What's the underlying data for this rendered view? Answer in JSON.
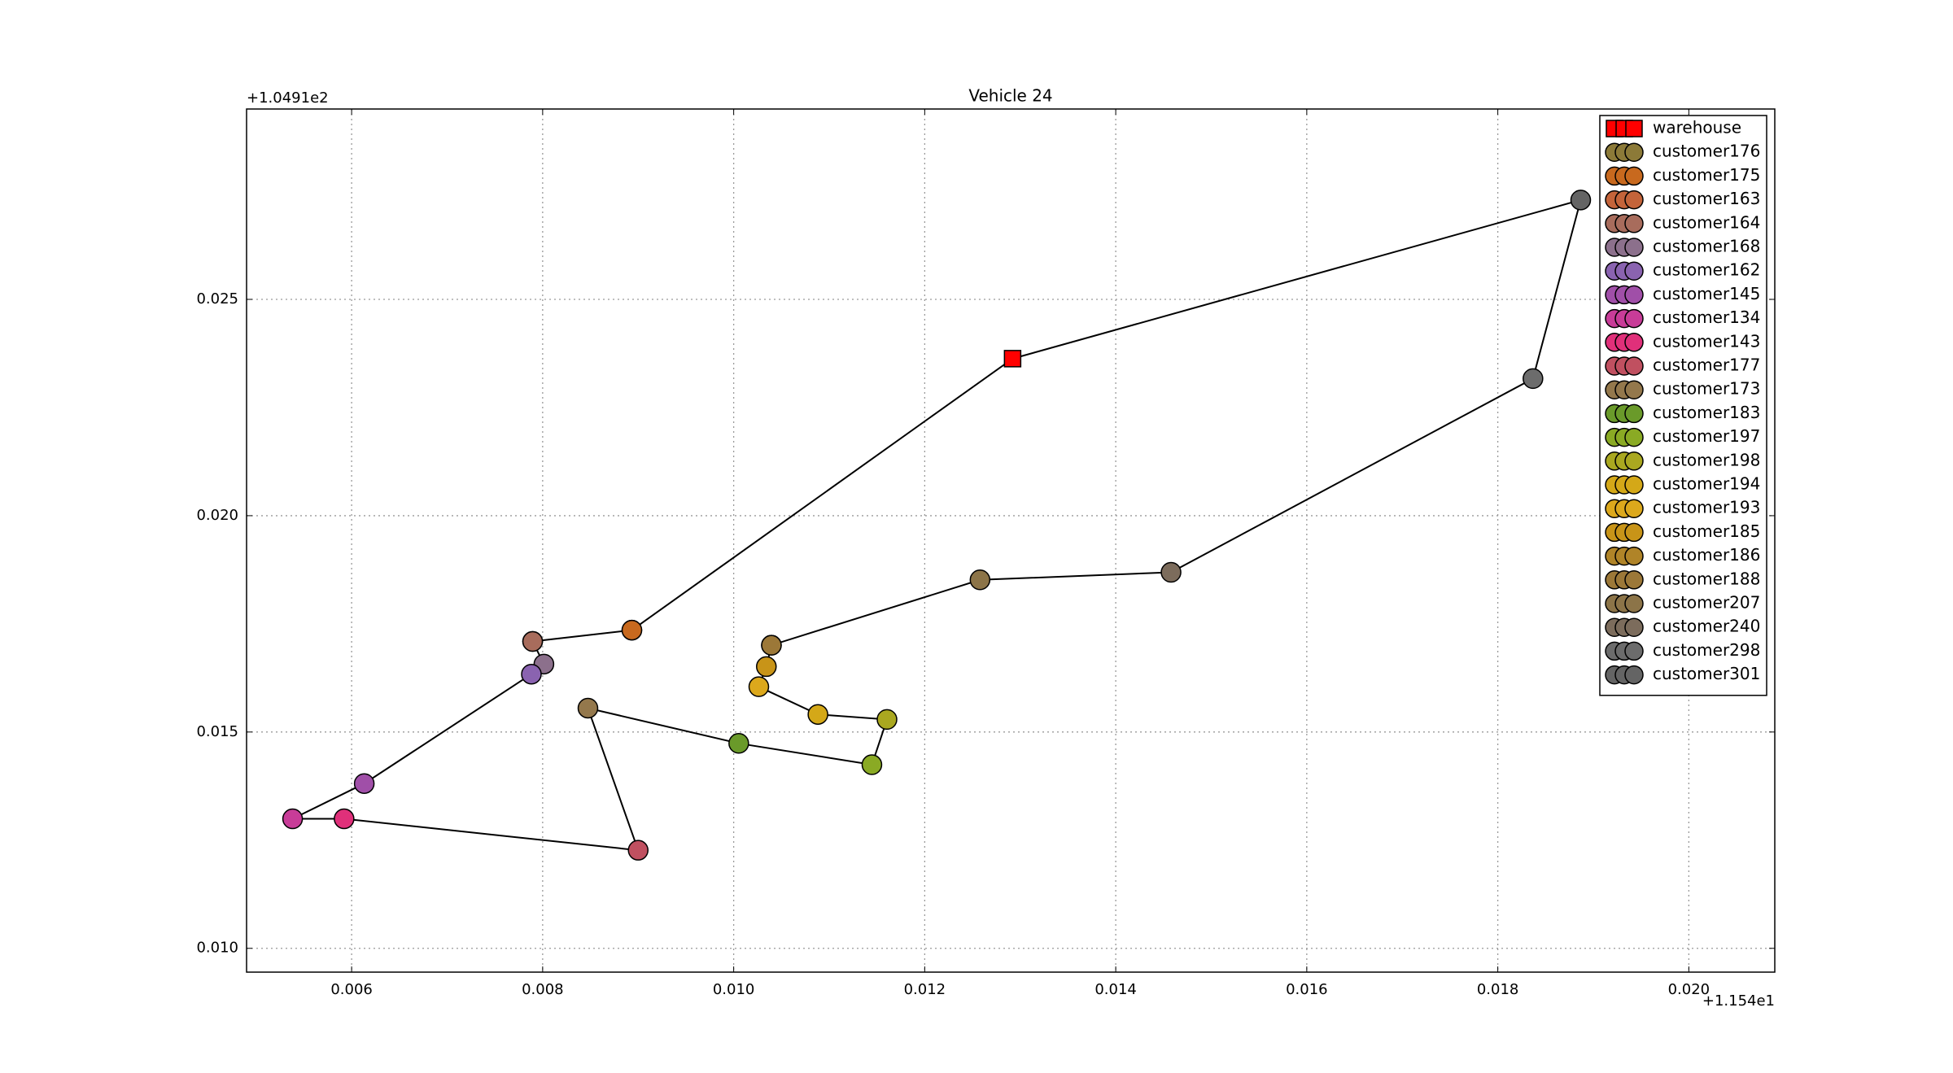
{
  "chart_data": {
    "type": "scatter",
    "title": "Vehicle 24",
    "x_offset": "+1.154e1",
    "y_offset": "+1.0491e2",
    "xlim": [
      0.0049,
      0.0209
    ],
    "ylim": [
      0.00945,
      0.0294
    ],
    "xticks": [
      0.006,
      0.008,
      {
        "value": 0.01,
        "label": "0.010"
      },
      0.012,
      0.014,
      0.016,
      0.018,
      {
        "value": 0.02,
        "label": "0.020"
      }
    ],
    "yticks": [
      {
        "value": 0.01,
        "label": "0.010"
      },
      0.015,
      {
        "value": 0.02,
        "label": "0.020"
      },
      0.025
    ],
    "grid": true,
    "legend": "upper right",
    "route": true,
    "series": [
      {
        "name": "warehouse",
        "color": "#ff0000",
        "marker": "square",
        "x": [
          0.01292
        ],
        "y": [
          0.02363
        ]
      },
      {
        "name": "customer176",
        "color": "#8c7a38",
        "marker": "circle",
        "x": [
          0.008934
        ],
        "y": [
          0.017355
        ]
      },
      {
        "name": "customer175",
        "color": "#c8691e",
        "marker": "circle",
        "x": [
          0.008934
        ],
        "y": [
          0.017355
        ]
      },
      {
        "name": "customer163",
        "color": "#c4643a",
        "marker": "circle",
        "x": [
          0.007895
        ],
        "y": [
          0.017093
        ]
      },
      {
        "name": "customer164",
        "color": "#a86c5c",
        "marker": "circle",
        "x": [
          0.007895
        ],
        "y": [
          0.017093
        ]
      },
      {
        "name": "customer168",
        "color": "#8c708c",
        "marker": "circle",
        "x": [
          0.008013
        ],
        "y": [
          0.01657
        ]
      },
      {
        "name": "customer162",
        "color": "#8a63b0",
        "marker": "circle",
        "x": [
          0.007882
        ],
        "y": [
          0.016337
        ]
      },
      {
        "name": "customer145",
        "color": "#a04fa8",
        "marker": "circle",
        "x": [
          0.006132
        ],
        "y": [
          0.013808
        ]
      },
      {
        "name": "customer134",
        "color": "#c83c98",
        "marker": "circle",
        "x": [
          0.005382
        ],
        "y": [
          0.012994
        ]
      },
      {
        "name": "customer143",
        "color": "#e0307a",
        "marker": "circle",
        "x": [
          0.005921
        ],
        "y": [
          0.012994
        ]
      },
      {
        "name": "customer177",
        "color": "#c05060",
        "marker": "circle",
        "x": [
          0.009
        ],
        "y": [
          0.012267
        ]
      },
      {
        "name": "customer173",
        "color": "#94784c",
        "marker": "circle",
        "x": [
          0.008474
        ],
        "y": [
          0.015552
        ]
      },
      {
        "name": "customer183",
        "color": "#6a9a2a",
        "marker": "circle",
        "x": [
          0.010053
        ],
        "y": [
          0.014738
        ]
      },
      {
        "name": "customer197",
        "color": "#8aaa24",
        "marker": "circle",
        "x": [
          0.011447
        ],
        "y": [
          0.014244
        ]
      },
      {
        "name": "customer198",
        "color": "#aaa820",
        "marker": "circle",
        "x": [
          0.011605
        ],
        "y": [
          0.015291
        ]
      },
      {
        "name": "customer194",
        "color": "#d4a818",
        "marker": "circle",
        "x": [
          0.010882
        ],
        "y": [
          0.015407
        ]
      },
      {
        "name": "customer193",
        "color": "#dca81c",
        "marker": "circle",
        "x": [
          0.010263
        ],
        "y": [
          0.016047
        ]
      },
      {
        "name": "customer185",
        "color": "#c89418",
        "marker": "circle",
        "x": [
          0.010342
        ],
        "y": [
          0.016512
        ]
      },
      {
        "name": "customer186",
        "color": "#b08428",
        "marker": "circle",
        "x": [
          0.010395
        ],
        "y": [
          0.017006
        ]
      },
      {
        "name": "customer188",
        "color": "#9c7838",
        "marker": "circle",
        "x": [
          0.010395
        ],
        "y": [
          0.017006
        ]
      },
      {
        "name": "customer207",
        "color": "#8c7448",
        "marker": "circle",
        "x": [
          0.012579
        ],
        "y": [
          0.018517
        ]
      },
      {
        "name": "customer240",
        "color": "#7c6c5c",
        "marker": "circle",
        "x": [
          0.014579
        ],
        "y": [
          0.018692
        ]
      },
      {
        "name": "customer298",
        "color": "#6c6c6c",
        "marker": "circle",
        "x": [
          0.018368
        ],
        "y": [
          0.023169
        ]
      },
      {
        "name": "customer301",
        "color": "#646464",
        "marker": "circle",
        "x": [
          0.018868
        ],
        "y": [
          0.027297
        ]
      }
    ]
  }
}
